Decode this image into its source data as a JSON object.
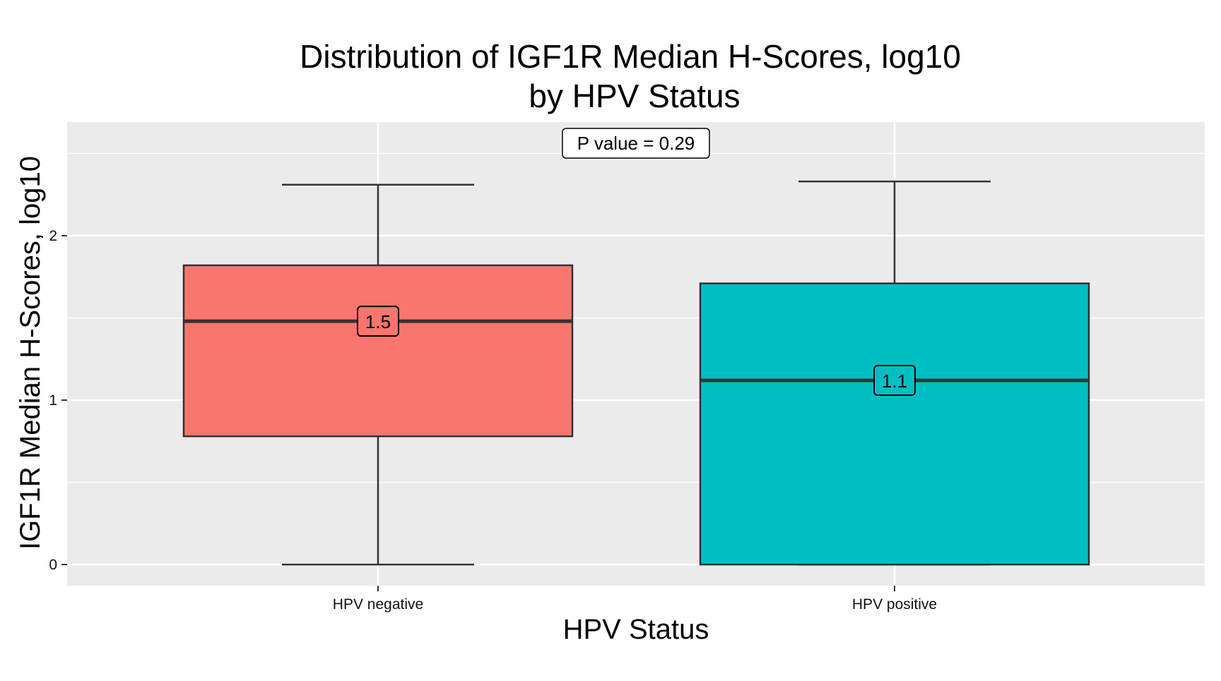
{
  "chart_data": {
    "type": "box",
    "title": "Distribution of IGF1R Median H-Scores, log10",
    "subtitle": "by HPV Status",
    "xlabel": "HPV Status",
    "ylabel": "IGF1R Median H-Scores, log10",
    "ylim": [
      -0.13,
      2.7
    ],
    "yticks": [
      0,
      1,
      2
    ],
    "grid": true,
    "legend": "none",
    "annotation": "P value = 0.29",
    "categories": [
      "HPV negative",
      "HPV positive"
    ],
    "boxes": [
      {
        "category": "HPV negative",
        "whisker_low": 0.0,
        "q1": 0.78,
        "median": 1.48,
        "q3": 1.82,
        "whisker_high": 2.31,
        "median_label": "1.5",
        "color": "#F8766D"
      },
      {
        "category": "HPV positive",
        "whisker_low": 0.0,
        "q1": 0.0,
        "median": 1.12,
        "q3": 1.71,
        "whisker_high": 2.33,
        "median_label": "1.1",
        "color": "#00BFC4"
      }
    ]
  },
  "colors": {
    "panel_background": "#EBEBEB",
    "grid": "#FFFFFF",
    "box_outline": "#333333"
  }
}
